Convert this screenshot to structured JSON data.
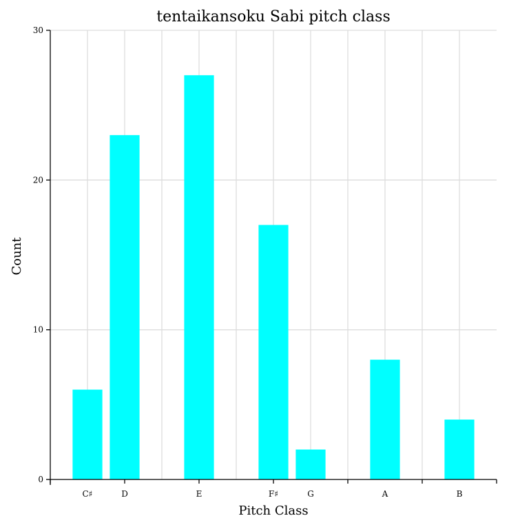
{
  "chart_data": {
    "type": "bar",
    "title": "tentaikansoku Sabi pitch class",
    "xlabel": "Pitch Class",
    "ylabel": "Count",
    "categories": [
      "C♯",
      "D",
      "E",
      "F♯",
      "G",
      "A",
      "B"
    ],
    "x": [
      1,
      2,
      4,
      6,
      7,
      9,
      11
    ],
    "values": [
      6,
      23,
      27,
      17,
      2,
      8,
      4
    ],
    "ylim": [
      0,
      30
    ],
    "xlim": [
      0,
      12
    ],
    "yticks": [
      0,
      10,
      20,
      30
    ],
    "ytick_labels": [
      "0",
      "10",
      "20",
      "30"
    ],
    "grid": true,
    "color": "#00ffff"
  }
}
